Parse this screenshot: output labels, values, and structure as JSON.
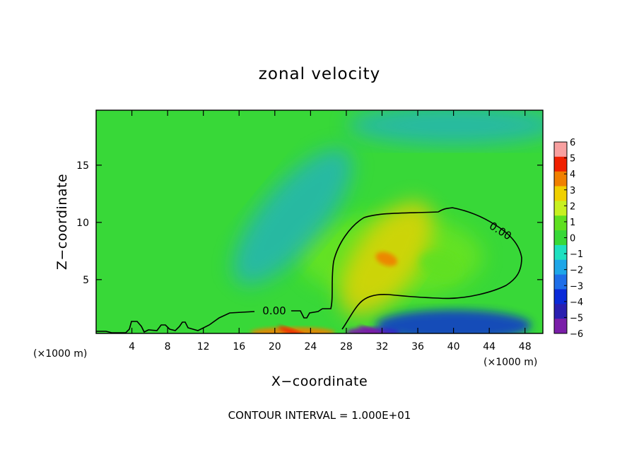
{
  "chart_data": {
    "type": "heatmap",
    "title": "zonal velocity",
    "xlabel": "X−coordinate",
    "ylabel": "Z−coordinate",
    "x_unit_label": "(×1000 m)",
    "x_ticks": [
      4,
      8,
      12,
      16,
      20,
      24,
      28,
      32,
      36,
      40,
      44,
      48
    ],
    "y_ticks": [
      5,
      10,
      15
    ],
    "xlim": [
      0,
      50
    ],
    "ylim": [
      0.3,
      19.8
    ],
    "colorbar": {
      "ticks": [
        "6",
        "5",
        "4",
        "3",
        "2",
        "1",
        "0",
        "−1",
        "−2",
        "−3",
        "−4",
        "−5",
        "−6"
      ],
      "values": [
        6,
        5,
        4,
        3,
        2,
        1,
        0,
        -1,
        -2,
        -3,
        -4,
        -5,
        -6
      ],
      "range": [
        -6,
        6
      ]
    },
    "contour_labels": [
      "0.00",
      "0.00"
    ],
    "footer": "CONTOUR INTERVAL = 1.000E+01",
    "features": [
      {
        "x": 32.5,
        "z": 6.8,
        "value": 3.5
      },
      {
        "x": 38.5,
        "z": 6.2,
        "value": 1.5
      },
      {
        "x": 22,
        "z": 0.4,
        "value": 4.5
      },
      {
        "x": 31,
        "z": 0.4,
        "value": -5.5
      },
      {
        "x": 40,
        "z": 1.0,
        "value": -3.5
      },
      {
        "x": 22,
        "z": 10.5,
        "value": -1.6
      },
      {
        "x": 40,
        "z": 18.5,
        "value": -1.5
      }
    ]
  }
}
